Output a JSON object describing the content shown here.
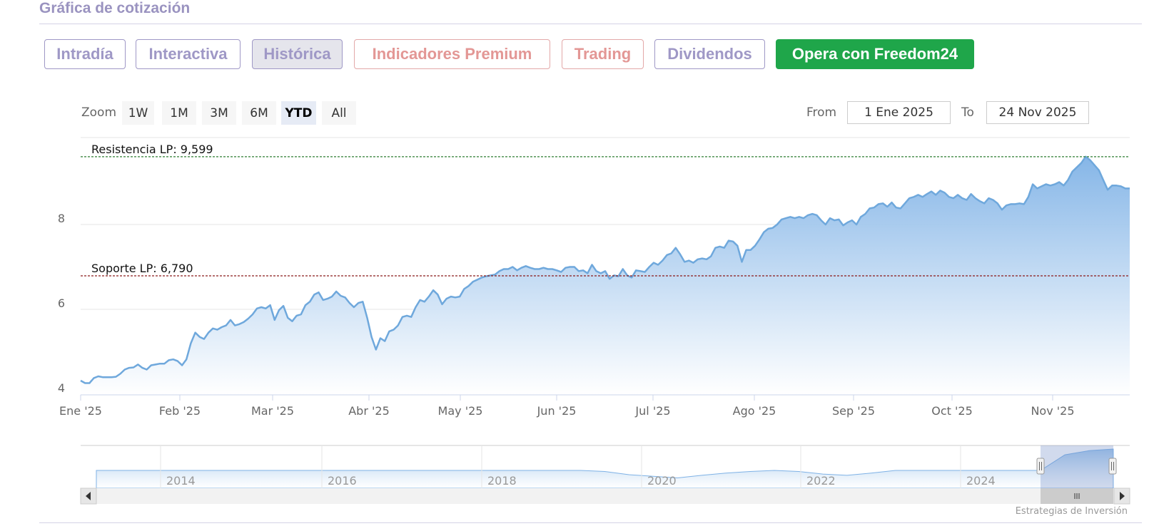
{
  "header": {
    "title": "Gráfica de cotización"
  },
  "tabs": [
    {
      "label": "Intradía",
      "style": "purple"
    },
    {
      "label": "Interactiva",
      "style": "purple"
    },
    {
      "label": "Histórica",
      "style": "active"
    },
    {
      "label": "Indicadores Premium",
      "style": "red"
    },
    {
      "label": "Trading",
      "style": "red"
    },
    {
      "label": "Dividendos",
      "style": "purple"
    },
    {
      "label": "Opera con Freedom24",
      "style": "green"
    }
  ],
  "zoom": {
    "label": "Zoom",
    "buttons": [
      "1W",
      "1M",
      "3M",
      "6M",
      "YTD",
      "All"
    ],
    "selected": "YTD"
  },
  "range": {
    "from_label": "From",
    "from_value": "1 Ene 2025",
    "to_label": "To",
    "to_value": "24 Nov 2025"
  },
  "chart_data": {
    "type": "area",
    "x_tick_labels": [
      "Ene '25",
      "Feb '25",
      "Mar '25",
      "Abr '25",
      "May '25",
      "Jun '25",
      "Jul '25",
      "Ago '25",
      "Sep '25",
      "Oct '25",
      "Nov '25"
    ],
    "y_tick_labels": [
      "4",
      "6",
      "8"
    ],
    "ylim": [
      3.85,
      9.9
    ],
    "grid": true,
    "series": [
      {
        "values": [
          4.32,
          4.26,
          4.26,
          4.38,
          4.42,
          4.4,
          4.4,
          4.4,
          4.41,
          4.48,
          4.58,
          4.62,
          4.63,
          4.7,
          4.62,
          4.58,
          4.68,
          4.7,
          4.72,
          4.72,
          4.8,
          4.82,
          4.78,
          4.68,
          4.82,
          5.2,
          5.45,
          5.35,
          5.3,
          5.45,
          5.55,
          5.52,
          5.58,
          5.62,
          5.75,
          5.62,
          5.65,
          5.7,
          5.78,
          5.88,
          6.02,
          6.05,
          6.02,
          6.1,
          5.75,
          5.98,
          6.08,
          5.8,
          5.72,
          5.85,
          5.88,
          6.1,
          6.18,
          6.35,
          6.4,
          6.22,
          6.25,
          6.3,
          6.42,
          6.32,
          6.28,
          6.15,
          6.05,
          6.15,
          6.18,
          5.8,
          5.35,
          5.05,
          5.32,
          5.25,
          5.48,
          5.52,
          5.62,
          5.82,
          5.85,
          5.82,
          6.05,
          6.22,
          6.18,
          6.3,
          6.45,
          6.35,
          6.12,
          6.25,
          6.3,
          6.28,
          6.3,
          6.48,
          6.55,
          6.65,
          6.7,
          6.75,
          6.78,
          6.8,
          6.82,
          6.9,
          6.95,
          6.95,
          7.0,
          6.92,
          6.98,
          7.02,
          6.98,
          6.95,
          6.95,
          6.98,
          6.95,
          6.95,
          6.92,
          6.88,
          6.98,
          7.0,
          7.0,
          6.9,
          6.92,
          6.85,
          7.05,
          6.9,
          6.85,
          6.9,
          6.72,
          6.8,
          6.78,
          6.95,
          6.8,
          6.75,
          6.92,
          6.9,
          6.88,
          7.0,
          7.1,
          7.05,
          7.15,
          7.28,
          7.32,
          7.45,
          7.3,
          7.12,
          7.15,
          7.1,
          7.18,
          7.2,
          7.18,
          7.25,
          7.45,
          7.48,
          7.45,
          7.62,
          7.6,
          7.5,
          7.12,
          7.4,
          7.4,
          7.5,
          7.65,
          7.82,
          7.9,
          7.92,
          8.0,
          8.12,
          8.15,
          8.18,
          8.15,
          8.18,
          8.15,
          8.22,
          8.25,
          8.22,
          8.1,
          8.0,
          8.15,
          8.1,
          8.12,
          7.98,
          8.05,
          8.1,
          8.0,
          8.18,
          8.25,
          8.38,
          8.4,
          8.48,
          8.5,
          8.42,
          8.52,
          8.4,
          8.38,
          8.5,
          8.62,
          8.65,
          8.7,
          8.65,
          8.72,
          8.78,
          8.7,
          8.8,
          8.75,
          8.65,
          8.62,
          8.7,
          8.62,
          8.58,
          8.72,
          8.62,
          8.55,
          8.5,
          8.62,
          8.58,
          8.5,
          8.35,
          8.45,
          8.48,
          8.48,
          8.5,
          8.48,
          8.65,
          8.95,
          8.85,
          8.9,
          8.95,
          8.92,
          8.95,
          9.0,
          8.92,
          9.05,
          9.25,
          9.35,
          9.45,
          9.6,
          9.52,
          9.4,
          9.28,
          9.05,
          8.82,
          8.92,
          8.92,
          8.9,
          8.85,
          8.85
        ]
      }
    ],
    "annotations": [
      {
        "label": "Resistencia LP: 9,599",
        "value": 9.599,
        "color": "#2e7d32"
      },
      {
        "label": "Soporte LP: 6,790",
        "value": 6.79,
        "color": "#8b1a1a"
      }
    ],
    "navigator": {
      "year_labels": [
        "2014",
        "2016",
        "2018",
        "2020",
        "2022",
        "2024"
      ]
    },
    "credit": "Estrategias de Inversión"
  }
}
